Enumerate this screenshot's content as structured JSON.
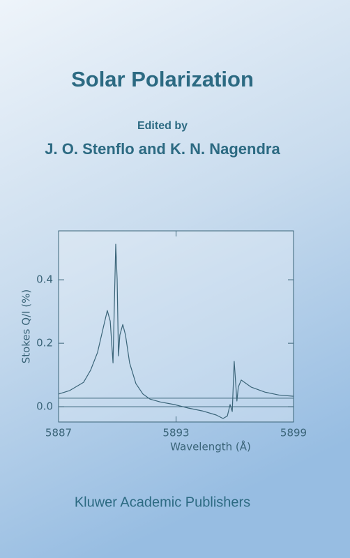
{
  "cover": {
    "title": "Solar Polarization",
    "edited_by": "Edited by",
    "editors": "J. O. Stenflo and K. N. Nagendra",
    "publisher": "Kluwer Academic Publishers"
  },
  "chart_data": {
    "type": "line",
    "x_label": "Wavelength (Å)",
    "y_label": "Stokes Q/I (%)",
    "x": [
      5887.0,
      5887.57,
      5888.28,
      5888.64,
      5888.99,
      5889.28,
      5889.49,
      5889.64,
      5889.78,
      5889.92,
      5889.99,
      5890.06,
      5890.13,
      5890.28,
      5890.42,
      5890.63,
      5890.95,
      5891.31,
      5891.67,
      5892.2,
      5892.91,
      5893.62,
      5894.34,
      5895.05,
      5895.4,
      5895.62,
      5895.76,
      5895.87,
      5895.97,
      5896.11,
      5896.18,
      5896.33,
      5896.83,
      5897.54,
      5898.25,
      5899.0
    ],
    "values": [
      0.04,
      0.051,
      0.077,
      0.116,
      0.171,
      0.248,
      0.303,
      0.27,
      0.138,
      0.512,
      0.402,
      0.16,
      0.226,
      0.259,
      0.226,
      0.138,
      0.073,
      0.04,
      0.024,
      0.015,
      0.007,
      -0.004,
      -0.013,
      -0.026,
      -0.037,
      -0.029,
      0.007,
      -0.015,
      0.143,
      0.018,
      0.062,
      0.084,
      0.062,
      0.046,
      0.037,
      0.033
    ],
    "color": "#3a6478",
    "hlines": [
      0,
      0.027
    ],
    "xlim": [
      5887,
      5899
    ],
    "xticks": [
      5887,
      5893,
      5899
    ],
    "ylim": [
      -0.048,
      0.554
    ],
    "yticks": [
      {
        "value": 0,
        "label": "0.0"
      },
      0.2,
      0.4
    ]
  }
}
